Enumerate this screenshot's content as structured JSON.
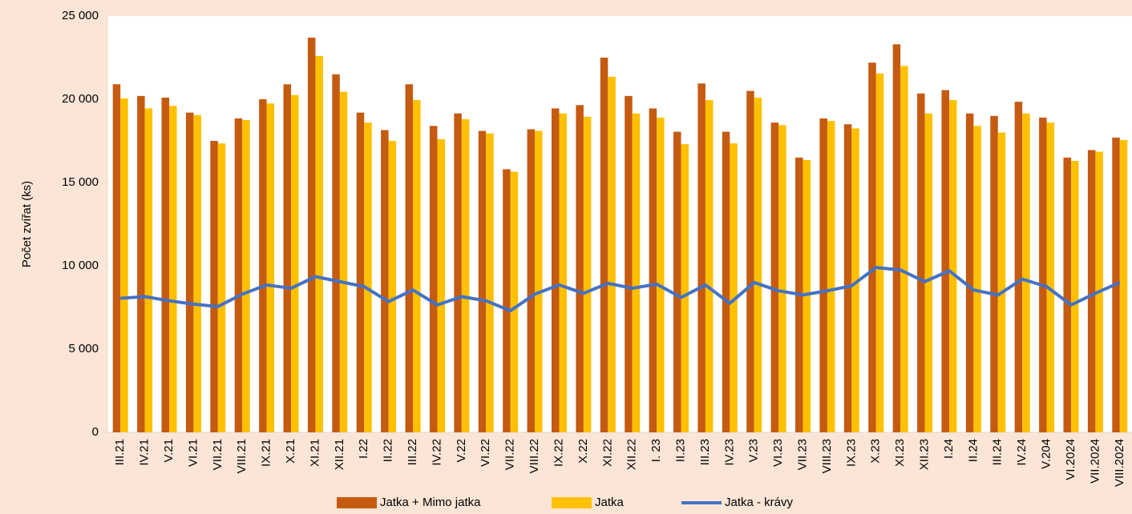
{
  "chart_data": {
    "type": "bar",
    "y_label": "Počet zvířat (ks)",
    "categories": [
      "III.21",
      "IV.21",
      "V.21",
      "VI.21",
      "VII.21",
      "VIII.21",
      "IX.21",
      "X.21",
      "XI.21",
      "XII.21",
      "I.22",
      "II.22",
      "III.22",
      "IV.22",
      "V.22",
      "VI.22",
      "VII.22",
      "VIII.22",
      "IX.22",
      "X.22",
      "XI.22",
      "XII.22",
      "I. 23",
      "II.23",
      "III.23",
      "IV.23",
      "V.23",
      "VI.23",
      "VII.23",
      "VIII.23",
      "IX.23",
      "X.23",
      "XI.23",
      "XII.23",
      "I.24",
      "II.24",
      "III.24",
      "IV.24",
      "V.204",
      "VI.2024",
      "VII.2024",
      "VIII.2024"
    ],
    "series": [
      {
        "name": "Jatka + Mimo jatka",
        "type": "bar",
        "color": "#c55a11",
        "values": [
          20900,
          20200,
          20100,
          19200,
          17500,
          18850,
          20000,
          20900,
          23700,
          21500,
          19200,
          18150,
          20900,
          18400,
          19150,
          18100,
          15800,
          18200,
          19450,
          19650,
          22500,
          20200,
          19450,
          18050,
          20950,
          18050,
          20500,
          18600,
          16500,
          18850,
          18500,
          22200,
          23300,
          20350,
          20550,
          19150,
          19000,
          19850,
          18900,
          16500,
          16950,
          17700
        ]
      },
      {
        "name": "Jatka",
        "type": "bar",
        "color": "#ffc000",
        "values": [
          20050,
          19450,
          19600,
          19050,
          17350,
          18750,
          19750,
          20250,
          22600,
          20450,
          18600,
          17500,
          19950,
          17600,
          18800,
          17950,
          15650,
          18100,
          19150,
          18950,
          21350,
          19150,
          18900,
          17300,
          19950,
          17350,
          20100,
          18450,
          16350,
          18700,
          18250,
          21550,
          22000,
          19150,
          19950,
          18400,
          18000,
          19150,
          18600,
          16300,
          16850,
          17550
        ]
      },
      {
        "name": "Jatka - krávy",
        "type": "line",
        "color": "#4472c4",
        "values": [
          8050,
          8150,
          7900,
          7700,
          7550,
          8300,
          8850,
          8650,
          9350,
          9050,
          8750,
          7850,
          8550,
          7650,
          8150,
          7900,
          7300,
          8300,
          8850,
          8350,
          8950,
          8650,
          8900,
          8100,
          8850,
          7750,
          9000,
          8500,
          8250,
          8500,
          8800,
          9900,
          9750,
          9050,
          9700,
          8550,
          8250,
          9200,
          8750,
          7650,
          8350,
          9000
        ]
      }
    ],
    "ylim": [
      0,
      25000
    ],
    "yticks": [
      0,
      {
        "value": 5000,
        "label": "5 000"
      },
      {
        "value": 10000,
        "label": "10 000"
      },
      {
        "value": 15000,
        "label": "15 000"
      },
      {
        "value": 20000,
        "label": "20 000"
      },
      {
        "value": 25000,
        "label": "25 000"
      }
    ],
    "grid": false,
    "legend": "bottom"
  }
}
